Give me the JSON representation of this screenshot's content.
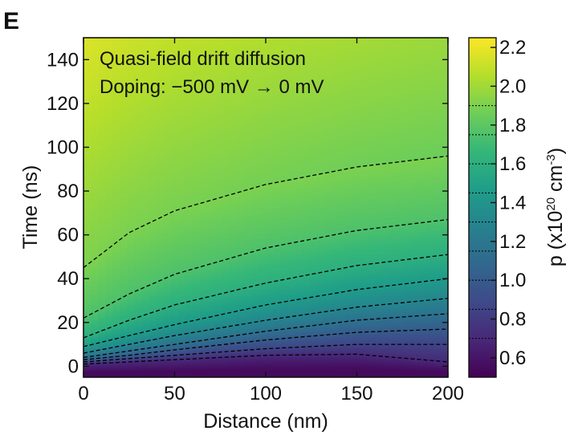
{
  "panel_label": "E",
  "chart_data": {
    "type": "heatmap",
    "title": "",
    "annotations": [
      "Quasi-field drift diffusion",
      "Doping: −500 mV → 0 mV"
    ],
    "xlabel": "Distance (nm)",
    "ylabel": "Time (ns)",
    "xlim": [
      0,
      200
    ],
    "ylim": [
      -5,
      150
    ],
    "xticks": [
      0,
      50,
      100,
      150,
      200
    ],
    "xtick_labels": [
      "0",
      "50",
      "100",
      "150",
      "200"
    ],
    "yticks": [
      0,
      20,
      40,
      60,
      80,
      100,
      120,
      140
    ],
    "ytick_labels": [
      "0",
      "20",
      "40",
      "60",
      "80",
      "100",
      "120",
      "140"
    ],
    "colorbar": {
      "label": "p (x10",
      "label_exponent": "20",
      "label_unit": " cm",
      "label_unit_exponent": "-3",
      "label_close": ")",
      "range": [
        0.5,
        2.25
      ],
      "colormap": "viridis",
      "ticks": [
        0.6,
        0.8,
        1.0,
        1.2,
        1.4,
        1.6,
        1.8,
        2.0,
        2.2
      ],
      "tick_labels": [
        "0.6",
        "0.8",
        "1.0",
        "1.2",
        "1.4",
        "1.6",
        "1.8",
        "2.0",
        "2.2"
      ]
    },
    "contours": [
      {
        "x": [
          0,
          25,
          50,
          100,
          150,
          200
        ],
        "y": [
          45,
          61,
          71,
          83,
          91,
          96
        ]
      },
      {
        "x": [
          0,
          25,
          50,
          100,
          150,
          200
        ],
        "y": [
          22,
          33,
          42,
          54,
          62,
          67
        ]
      },
      {
        "x": [
          0,
          25,
          50,
          100,
          150,
          200
        ],
        "y": [
          13,
          21,
          28,
          38,
          46,
          51
        ]
      },
      {
        "x": [
          0,
          25,
          50,
          100,
          150,
          200
        ],
        "y": [
          9,
          14,
          19,
          28,
          35,
          40
        ]
      },
      {
        "x": [
          0,
          25,
          50,
          100,
          150,
          200
        ],
        "y": [
          6,
          10,
          14,
          21,
          27,
          31
        ]
      },
      {
        "x": [
          0,
          25,
          50,
          100,
          150,
          200
        ],
        "y": [
          4,
          7,
          10,
          16,
          21,
          24
        ]
      },
      {
        "x": [
          0,
          25,
          50,
          100,
          150,
          200
        ],
        "y": [
          3,
          5,
          7.5,
          12,
          15.5,
          17
        ]
      },
      {
        "x": [
          0,
          25,
          50,
          100,
          150,
          200
        ],
        "y": [
          2,
          3.5,
          5,
          8,
          10,
          10
        ]
      },
      {
        "x": [
          0,
          25,
          50,
          100,
          150,
          200
        ],
        "y": [
          1,
          2,
          3,
          5,
          5.5,
          2
        ]
      }
    ],
    "colors": {
      "viridis_stops": [
        "#440154",
        "#482878",
        "#3e4a89",
        "#31688e",
        "#26828e",
        "#1f9e89",
        "#35b779",
        "#6ece58",
        "#b5de2b",
        "#fde725"
      ],
      "contour": "#000000"
    }
  }
}
